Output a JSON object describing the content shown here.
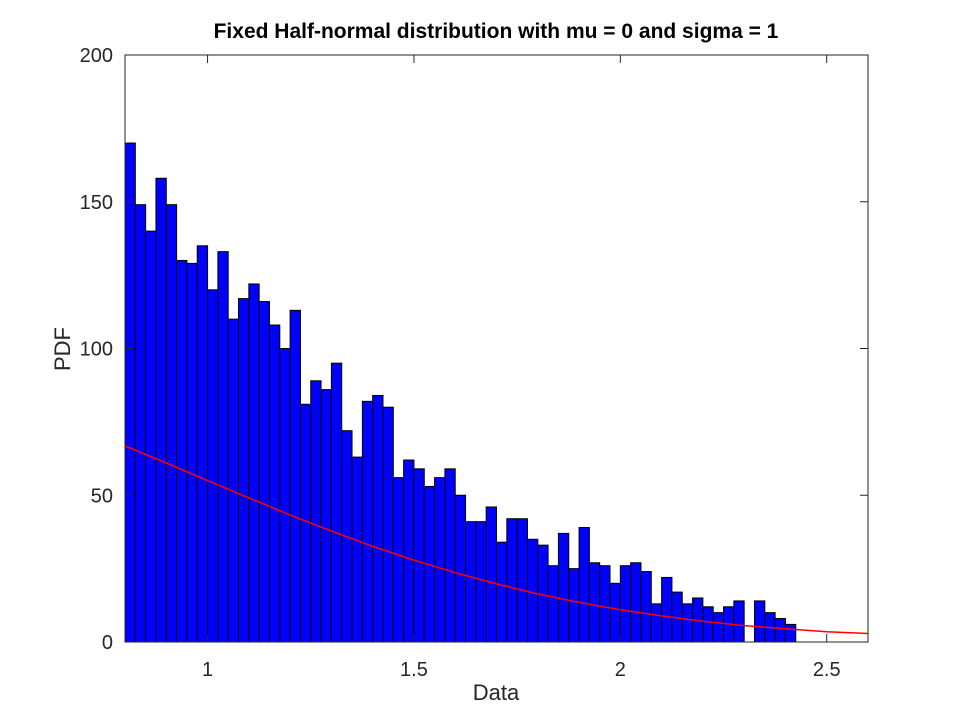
{
  "chart_data": {
    "type": "bar",
    "title": "Fixed Half-normal distribution with mu = 0 and sigma = 1",
    "xlabel": "Data",
    "ylabel": "PDF",
    "xlim": [
      0.8,
      2.6
    ],
    "ylim": [
      0,
      200
    ],
    "xticks": [
      1,
      1.5,
      2,
      2.5
    ],
    "yticks": [
      0,
      50,
      100,
      150,
      200
    ],
    "xtick_labels": [
      "1",
      "1.5",
      "2",
      "2.5"
    ],
    "ytick_labels": [
      "0",
      "50",
      "100",
      "150",
      "200"
    ],
    "grid": false,
    "legend": "none",
    "colors": {
      "bars": "#0000ff",
      "bar_edge": "#000000",
      "curve": "#ff0000",
      "axes": "#262626"
    },
    "histogram": {
      "start": 0.8,
      "bin_width": 0.025,
      "counts": [
        170,
        149,
        140,
        158,
        149,
        130,
        129,
        135,
        120,
        133,
        110,
        117,
        122,
        116,
        108,
        100,
        113,
        81,
        89,
        86,
        95,
        72,
        63,
        82,
        84,
        80,
        56,
        62,
        59,
        53,
        56,
        59,
        50,
        41,
        41,
        46,
        34,
        42,
        42,
        35,
        33,
        26,
        37,
        25,
        39,
        27,
        26,
        20,
        26,
        27,
        24,
        13,
        22,
        17,
        13,
        15,
        12,
        10,
        12,
        14,
        0,
        14,
        10,
        8,
        6
      ]
    },
    "series": [
      {
        "type": "line",
        "x": [
          0.8,
          0.9,
          1.0,
          1.1,
          1.2,
          1.3,
          1.4,
          1.5,
          1.6,
          1.7,
          1.8,
          1.9,
          2.0,
          2.1,
          2.2,
          2.3,
          2.4,
          2.5,
          2.6
        ],
        "values": [
          66.8,
          61.0,
          55.0,
          49.1,
          43.3,
          37.8,
          32.6,
          27.9,
          23.6,
          19.8,
          16.4,
          13.5,
          11.0,
          8.9,
          7.1,
          5.6,
          4.5,
          3.5,
          2.9
        ]
      }
    ]
  }
}
